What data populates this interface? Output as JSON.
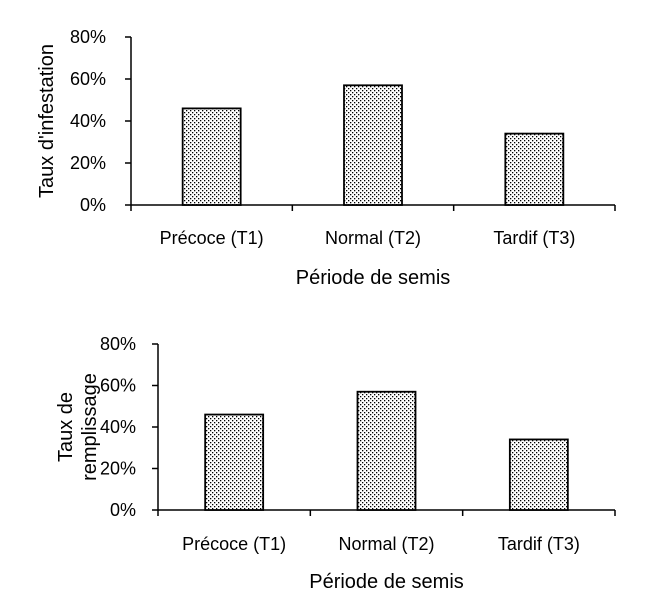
{
  "chart_data": [
    {
      "type": "bar",
      "categories": [
        "Précoce (T1)",
        "Normal (T2)",
        "Tardif (T3)"
      ],
      "values": [
        46,
        57,
        34
      ],
      "xlabel": "Période de semis",
      "ylabel": [
        "Taux d'infestation"
      ],
      "ylim": [
        0,
        80
      ],
      "yticks": [
        "0%",
        "20%",
        "40%",
        "60%",
        "80%"
      ],
      "yticks_values": [
        0,
        20,
        40,
        60,
        80
      ],
      "grid": false,
      "bar_fill": "dotted pattern",
      "bar_color": "#000000"
    },
    {
      "type": "bar",
      "categories": [
        "Précoce (T1)",
        "Normal (T2)",
        "Tardif (T3)"
      ],
      "values": [
        46,
        57,
        34
      ],
      "xlabel": "Période de semis",
      "ylabel": [
        "Taux de",
        "remplissage"
      ],
      "ylim": [
        0,
        80
      ],
      "yticks": [
        "0%",
        "20%",
        "40%",
        "60%",
        "80%"
      ],
      "yticks_values": [
        0,
        20,
        40,
        60,
        80
      ],
      "grid": false,
      "bar_fill": "dotted pattern",
      "bar_color": "#000000"
    }
  ]
}
